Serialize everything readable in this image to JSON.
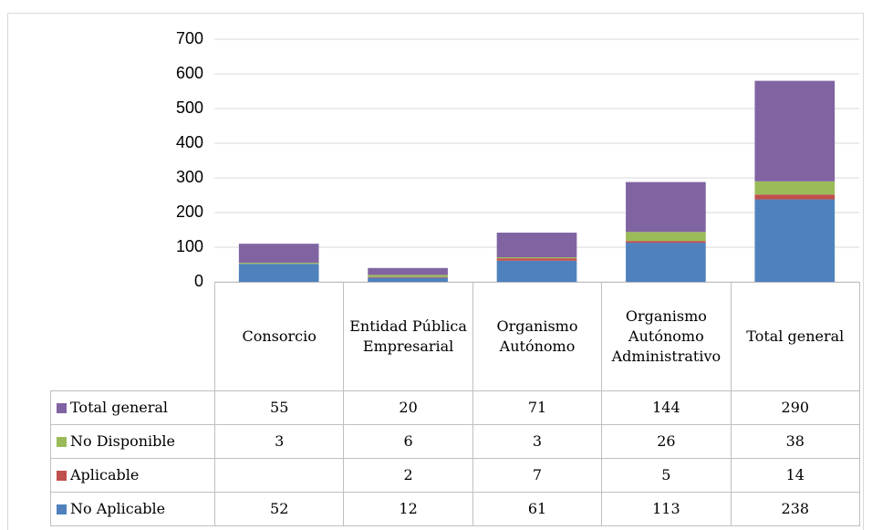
{
  "chart_data": {
    "type": "stacked_bar",
    "categories": [
      "Consorcio",
      "Entidad Pública Empresarial",
      "Organismo Autónomo",
      "Organismo Autónomo Administrativo",
      "Total general"
    ],
    "series": [
      {
        "name": "No Aplicable",
        "color": "#4f81bd",
        "values": [
          52,
          12,
          61,
          113,
          238
        ]
      },
      {
        "name": "Aplicable",
        "color": "#c0504d",
        "values": [
          null,
          2,
          7,
          5,
          14
        ]
      },
      {
        "name": "No Disponible",
        "color": "#9bbb59",
        "values": [
          3,
          6,
          3,
          26,
          38
        ]
      },
      {
        "name": "Total general",
        "color": "#8064a2",
        "values": [
          55,
          20,
          71,
          144,
          290
        ]
      }
    ],
    "ylim": [
      0,
      700
    ],
    "yticks": [
      0,
      100,
      200,
      300,
      400,
      500,
      600,
      700
    ],
    "grid": true
  }
}
